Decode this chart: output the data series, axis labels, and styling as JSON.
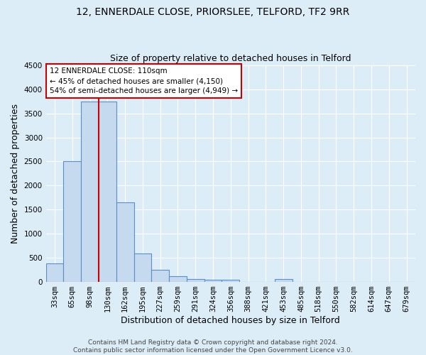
{
  "title": "12, ENNERDALE CLOSE, PRIORSLEE, TELFORD, TF2 9RR",
  "subtitle": "Size of property relative to detached houses in Telford",
  "xlabel": "Distribution of detached houses by size in Telford",
  "ylabel": "Number of detached properties",
  "categories": [
    "33sqm",
    "65sqm",
    "98sqm",
    "130sqm",
    "162sqm",
    "195sqm",
    "227sqm",
    "259sqm",
    "291sqm",
    "324sqm",
    "356sqm",
    "388sqm",
    "421sqm",
    "453sqm",
    "485sqm",
    "518sqm",
    "550sqm",
    "582sqm",
    "614sqm",
    "647sqm",
    "679sqm"
  ],
  "values": [
    380,
    2500,
    3750,
    3750,
    1650,
    580,
    240,
    105,
    60,
    45,
    40,
    0,
    0,
    55,
    0,
    0,
    0,
    0,
    0,
    0,
    0
  ],
  "bar_color": "#c5d9ef",
  "bar_edge_color": "#5b8fc9",
  "vline_x": 2.5,
  "vline_color": "#cc0000",
  "annotation_text": "12 ENNERDALE CLOSE: 110sqm\n← 45% of detached houses are smaller (4,150)\n54% of semi-detached houses are larger (4,949) →",
  "annotation_box_color": "#ffffff",
  "annotation_box_edge": "#cc0000",
  "ylim": [
    0,
    4500
  ],
  "yticks": [
    0,
    500,
    1000,
    1500,
    2000,
    2500,
    3000,
    3500,
    4000,
    4500
  ],
  "background_color": "#ddedf8",
  "plot_bg_color": "#ddedf8",
  "grid_color": "#ffffff",
  "footer": "Contains HM Land Registry data © Crown copyright and database right 2024.\nContains public sector information licensed under the Open Government Licence v3.0.",
  "title_fontsize": 10,
  "subtitle_fontsize": 9,
  "axis_label_fontsize": 9,
  "tick_fontsize": 7.5,
  "annotation_fontsize": 7.5,
  "footer_fontsize": 6.5
}
